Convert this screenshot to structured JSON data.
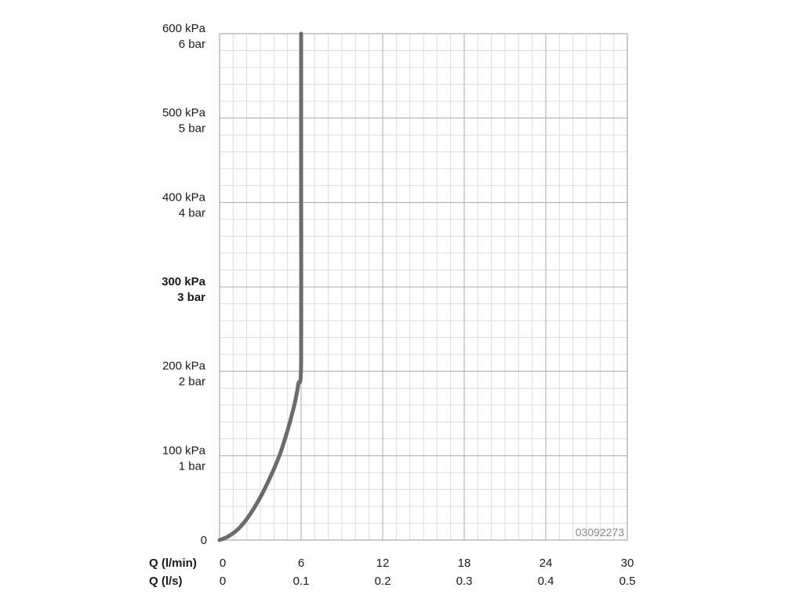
{
  "chart_data": {
    "type": "line",
    "x_unit_primary": "Q (l/min)",
    "x_unit_secondary": "Q (l/s)",
    "xlim": [
      0,
      30
    ],
    "ylim": [
      0,
      600
    ],
    "x_ticks": [
      {
        "value": 0,
        "primary": "0",
        "secondary": "0"
      },
      {
        "value": 6,
        "primary": "6",
        "secondary": "0.1"
      },
      {
        "value": 12,
        "primary": "12",
        "secondary": "0.2"
      },
      {
        "value": 18,
        "primary": "18",
        "secondary": "0.3"
      },
      {
        "value": 24,
        "primary": "24",
        "secondary": "0.4"
      },
      {
        "value": 30,
        "primary": "30",
        "secondary": "0.5"
      }
    ],
    "y_ticks": [
      {
        "value": 0,
        "kpa": "0",
        "bar": "",
        "bold": false
      },
      {
        "value": 100,
        "kpa": "100 kPa",
        "bar": "1 bar",
        "bold": false
      },
      {
        "value": 200,
        "kpa": "200 kPa",
        "bar": "2 bar",
        "bold": false
      },
      {
        "value": 300,
        "kpa": "300 kPa",
        "bar": "3 bar",
        "bold": true
      },
      {
        "value": 400,
        "kpa": "400 kPa",
        "bar": "4 bar",
        "bold": false
      },
      {
        "value": 500,
        "kpa": "500 kPa",
        "bar": "5 bar",
        "bold": false
      },
      {
        "value": 600,
        "kpa": "600 kPa",
        "bar": "6 bar",
        "bold": false
      }
    ],
    "grid": true,
    "series": [
      {
        "color": "#6b6b6b",
        "x": [
          0,
          0.6,
          1.3,
          2.0,
          2.8,
          3.6,
          4.4,
          5.0,
          5.5,
          5.8,
          6.0,
          6.0,
          6.0
        ],
        "y": [
          0,
          4,
          12,
          25,
          45,
          70,
          100,
          130,
          160,
          185,
          210,
          400,
          600
        ]
      }
    ],
    "annotation": "03092273"
  }
}
